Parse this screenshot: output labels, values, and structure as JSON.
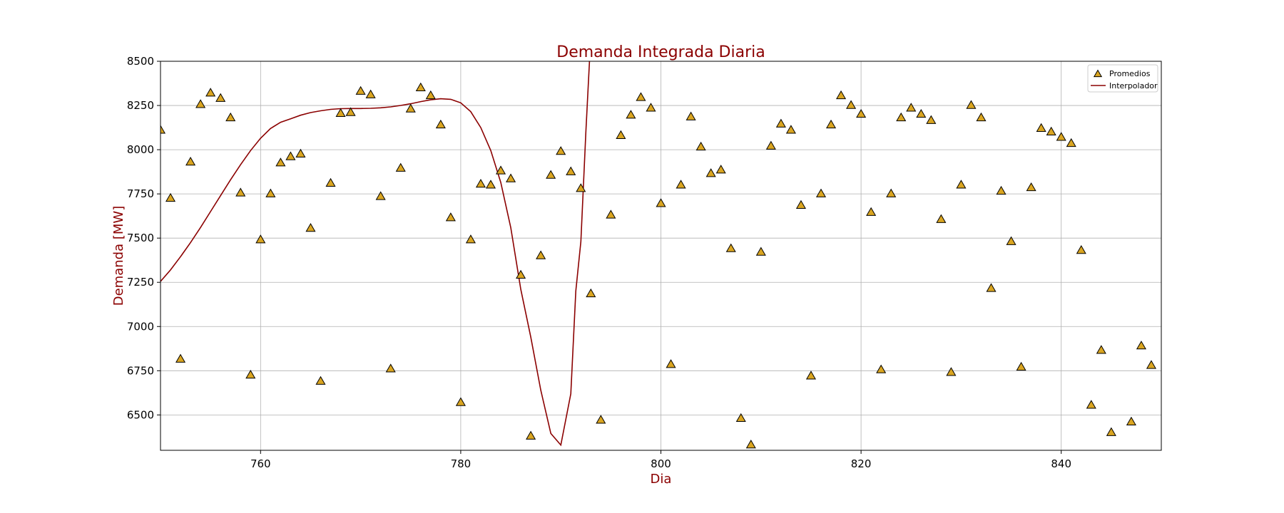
{
  "chart_data": {
    "type": "scatter",
    "title": "Demanda Integrada Diaria",
    "xlabel": "Dia",
    "ylabel": "Demanda [MW]",
    "xlim": [
      750,
      850
    ],
    "ylim": [
      6300,
      8500
    ],
    "xticks": [
      760,
      780,
      800,
      820,
      840
    ],
    "yticks": [
      6500,
      6750,
      7000,
      7250,
      7500,
      7750,
      8000,
      8250,
      8500
    ],
    "grid": true,
    "legend_position": "top-right",
    "colors": {
      "title": "#8b0000",
      "labels": "#8b0000",
      "marker_fill": "#daa520",
      "marker_edge": "#000000",
      "line": "#8b0000"
    },
    "series": [
      {
        "name": "Promedios",
        "type": "scatter",
        "marker": "triangle",
        "points": [
          [
            750,
            8110
          ],
          [
            751,
            7725
          ],
          [
            752,
            6815
          ],
          [
            753,
            7930
          ],
          [
            754,
            8255
          ],
          [
            755,
            8320
          ],
          [
            756,
            8290
          ],
          [
            757,
            8180
          ],
          [
            758,
            7755
          ],
          [
            759,
            6725
          ],
          [
            760,
            7490
          ],
          [
            761,
            7750
          ],
          [
            762,
            7925
          ],
          [
            763,
            7960
          ],
          [
            764,
            7975
          ],
          [
            765,
            7555
          ],
          [
            766,
            6690
          ],
          [
            767,
            7810
          ],
          [
            768,
            8205
          ],
          [
            769,
            8210
          ],
          [
            770,
            8330
          ],
          [
            771,
            8310
          ],
          [
            772,
            7735
          ],
          [
            773,
            6760
          ],
          [
            774,
            7895
          ],
          [
            775,
            8230
          ],
          [
            776,
            8350
          ],
          [
            777,
            8305
          ],
          [
            778,
            8140
          ],
          [
            779,
            7615
          ],
          [
            780,
            6570
          ],
          [
            781,
            7490
          ],
          [
            782,
            7805
          ],
          [
            783,
            7800
          ],
          [
            784,
            7880
          ],
          [
            785,
            7835
          ],
          [
            786,
            7290
          ],
          [
            787,
            6380
          ],
          [
            788,
            7400
          ],
          [
            789,
            7855
          ],
          [
            790,
            7990
          ],
          [
            791,
            7875
          ],
          [
            792,
            7780
          ],
          [
            793,
            7185
          ],
          [
            794,
            6470
          ],
          [
            795,
            7630
          ],
          [
            796,
            8080
          ],
          [
            797,
            8195
          ],
          [
            798,
            8295
          ],
          [
            799,
            8235
          ],
          [
            800,
            7695
          ],
          [
            801,
            6785
          ],
          [
            802,
            7800
          ],
          [
            803,
            8185
          ],
          [
            804,
            8015
          ],
          [
            805,
            7865
          ],
          [
            806,
            7885
          ],
          [
            807,
            7440
          ],
          [
            808,
            6480
          ],
          [
            809,
            6330
          ],
          [
            810,
            7420
          ],
          [
            811,
            8020
          ],
          [
            812,
            8145
          ],
          [
            813,
            8110
          ],
          [
            814,
            7685
          ],
          [
            815,
            6720
          ],
          [
            816,
            7750
          ],
          [
            817,
            8140
          ],
          [
            818,
            8305
          ],
          [
            819,
            8250
          ],
          [
            820,
            8200
          ],
          [
            821,
            7645
          ],
          [
            822,
            6755
          ],
          [
            823,
            7750
          ],
          [
            824,
            8180
          ],
          [
            825,
            8235
          ],
          [
            826,
            8200
          ],
          [
            827,
            8165
          ],
          [
            828,
            7605
          ],
          [
            829,
            6740
          ],
          [
            830,
            7800
          ],
          [
            831,
            8250
          ],
          [
            832,
            8180
          ],
          [
            833,
            7215
          ],
          [
            834,
            7765
          ],
          [
            835,
            7480
          ],
          [
            836,
            6770
          ],
          [
            837,
            7785
          ],
          [
            838,
            8120
          ],
          [
            839,
            8100
          ],
          [
            840,
            8070
          ],
          [
            841,
            8035
          ],
          [
            842,
            7430
          ],
          [
            843,
            6555
          ],
          [
            844,
            6865
          ],
          [
            845,
            6400
          ],
          [
            847,
            6460
          ],
          [
            848,
            6890
          ],
          [
            849,
            6780
          ]
        ]
      },
      {
        "name": "Interpolador",
        "type": "line",
        "points": [
          [
            750,
            7255
          ],
          [
            751,
            7320
          ],
          [
            752,
            7395
          ],
          [
            753,
            7475
          ],
          [
            754,
            7560
          ],
          [
            755,
            7650
          ],
          [
            756,
            7740
          ],
          [
            757,
            7830
          ],
          [
            758,
            7915
          ],
          [
            759,
            7995
          ],
          [
            760,
            8065
          ],
          [
            761,
            8120
          ],
          [
            762,
            8155
          ],
          [
            763,
            8175
          ],
          [
            764,
            8195
          ],
          [
            765,
            8210
          ],
          [
            766,
            8220
          ],
          [
            767,
            8228
          ],
          [
            768,
            8232
          ],
          [
            769,
            8233
          ],
          [
            770,
            8233
          ],
          [
            771,
            8234
          ],
          [
            772,
            8237
          ],
          [
            773,
            8242
          ],
          [
            774,
            8250
          ],
          [
            775,
            8260
          ],
          [
            776,
            8272
          ],
          [
            777,
            8282
          ],
          [
            778,
            8288
          ],
          [
            779,
            8285
          ],
          [
            780,
            8265
          ],
          [
            781,
            8215
          ],
          [
            782,
            8125
          ],
          [
            783,
            7995
          ],
          [
            784,
            7815
          ],
          [
            785,
            7560
          ],
          [
            786,
            7210
          ],
          [
            787,
            6940
          ],
          [
            788,
            6640
          ],
          [
            789,
            6395
          ],
          [
            790,
            6330
          ],
          [
            791,
            6620
          ],
          [
            791.5,
            7200
          ],
          [
            792,
            7480
          ],
          [
            792.5,
            8100
          ],
          [
            793,
            8650
          ]
        ]
      }
    ]
  }
}
